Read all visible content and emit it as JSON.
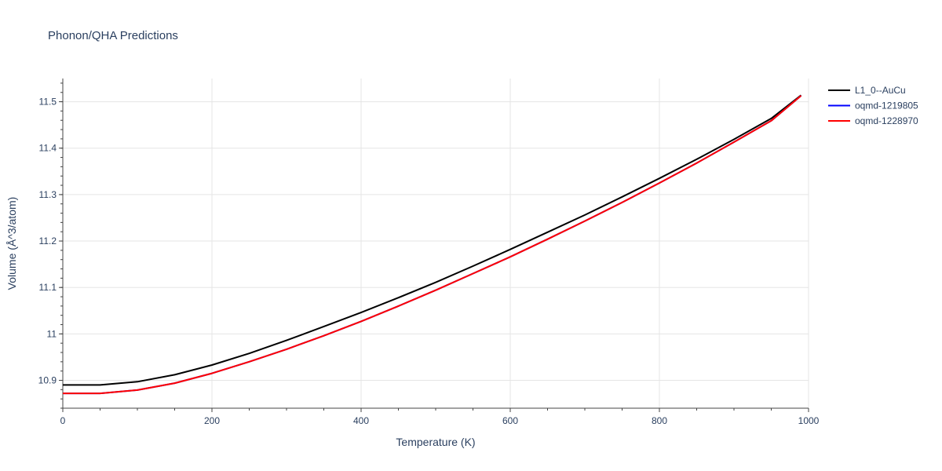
{
  "chart_data": {
    "type": "line",
    "title": "Phonon/QHA Predictions",
    "xlabel": "Temperature (K)",
    "ylabel": "Volume (Å^3/atom)",
    "xlim": [
      0,
      1000
    ],
    "ylim": [
      10.84,
      11.55
    ],
    "x_ticks": [
      0,
      200,
      400,
      600,
      800,
      1000
    ],
    "x_tick_labels": [
      "0",
      "200",
      "400",
      "600",
      "800",
      "1000"
    ],
    "y_ticks": [
      10.9,
      11.0,
      11.1,
      11.2,
      11.3,
      11.4,
      11.5
    ],
    "y_tick_labels": [
      "10.9",
      "11",
      "11.1",
      "11.2",
      "11.3",
      "11.4",
      "11.5"
    ],
    "grid": true,
    "legend_position": "top-right",
    "series": [
      {
        "name": "L1_0--AuCu",
        "color": "#000000",
        "x": [
          0,
          50,
          100,
          150,
          200,
          250,
          300,
          350,
          400,
          450,
          500,
          550,
          600,
          650,
          700,
          750,
          800,
          850,
          900,
          950,
          990
        ],
        "y": [
          10.89,
          10.89,
          10.897,
          10.912,
          10.933,
          10.958,
          10.986,
          11.016,
          11.046,
          11.078,
          11.111,
          11.146,
          11.182,
          11.219,
          11.256,
          11.295,
          11.335,
          11.376,
          11.419,
          11.464,
          11.514
        ]
      },
      {
        "name": "oqmd-1219805",
        "color": "#0000ff",
        "x": [
          0,
          50,
          100,
          150,
          200,
          250,
          300,
          350,
          400,
          450,
          500,
          550,
          600,
          650,
          700,
          750,
          800,
          850,
          900,
          950,
          990
        ],
        "y": [
          10.872,
          10.872,
          10.879,
          10.894,
          10.915,
          10.94,
          10.967,
          10.996,
          11.027,
          11.06,
          11.094,
          11.13,
          11.166,
          11.204,
          11.243,
          11.283,
          11.325,
          11.368,
          11.413,
          11.459,
          11.513
        ]
      },
      {
        "name": "oqmd-1228970",
        "color": "#ff0000",
        "x": [
          0,
          50,
          100,
          150,
          200,
          250,
          300,
          350,
          400,
          450,
          500,
          550,
          600,
          650,
          700,
          750,
          800,
          850,
          900,
          950,
          990
        ],
        "y": [
          10.872,
          10.872,
          10.879,
          10.894,
          10.915,
          10.94,
          10.967,
          10.996,
          11.027,
          11.06,
          11.094,
          11.13,
          11.166,
          11.204,
          11.243,
          11.283,
          11.325,
          11.368,
          11.413,
          11.459,
          11.513
        ]
      }
    ]
  }
}
